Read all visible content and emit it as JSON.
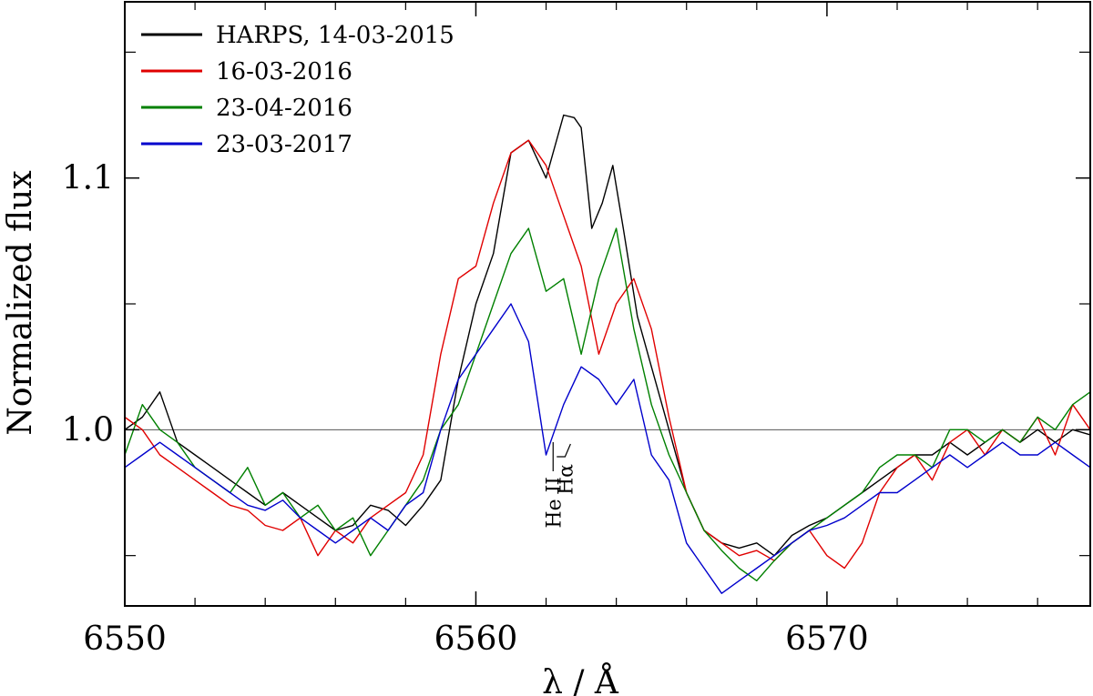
{
  "chart_data": {
    "type": "line",
    "title": "",
    "xlabel": "λ / Å",
    "ylabel": "Normalized flux",
    "xlim": [
      6550,
      6577.5
    ],
    "ylim": [
      0.93,
      1.17
    ],
    "xticks": [
      6550,
      6560,
      6570
    ],
    "xtick_labels": [
      "6550",
      "6560",
      "6570"
    ],
    "xtick_minor": [
      6552,
      6554,
      6556,
      6558,
      6562,
      6564,
      6566,
      6568,
      6572,
      6574,
      6576
    ],
    "yticks": [
      1.0,
      1.1
    ],
    "ytick_labels": [
      "1.0",
      "1.1"
    ],
    "ytick_minor": [
      0.95,
      1.05,
      1.15
    ],
    "reference_line": 1.0,
    "legend_position": "top-left",
    "series": [
      {
        "name": "HARPS, 14-03-2015",
        "color": "#000000",
        "x": [
          6550,
          6550.5,
          6551,
          6551.5,
          6552,
          6552.5,
          6553,
          6553.5,
          6554,
          6554.5,
          6555,
          6555.5,
          6556,
          6556.5,
          6557,
          6557.5,
          6558,
          6558.5,
          6559,
          6559.5,
          6560,
          6560.5,
          6561,
          6561.5,
          6562,
          6562.5,
          6562.8,
          6563,
          6563.3,
          6563.6,
          6563.9,
          6564.2,
          6564.6,
          6565,
          6565.5,
          6566,
          6566.5,
          6567,
          6567.5,
          6568,
          6568.5,
          6569,
          6569.5,
          6570,
          6570.5,
          6571,
          6571.5,
          6572,
          6572.5,
          6573,
          6573.5,
          6574,
          6574.5,
          6575,
          6575.5,
          6576,
          6576.5,
          6577,
          6577.5
        ],
        "y": [
          1.0,
          1.005,
          1.015,
          0.995,
          0.99,
          0.985,
          0.98,
          0.975,
          0.97,
          0.975,
          0.97,
          0.965,
          0.96,
          0.962,
          0.97,
          0.968,
          0.962,
          0.97,
          0.98,
          1.02,
          1.05,
          1.07,
          1.11,
          1.115,
          1.1,
          1.125,
          1.124,
          1.12,
          1.08,
          1.09,
          1.105,
          1.08,
          1.045,
          1.025,
          1.0,
          0.975,
          0.96,
          0.955,
          0.953,
          0.955,
          0.95,
          0.958,
          0.962,
          0.965,
          0.97,
          0.975,
          0.98,
          0.985,
          0.99,
          0.99,
          0.995,
          0.99,
          0.995,
          1.0,
          0.995,
          1.0,
          0.995,
          1.0,
          0.998
        ]
      },
      {
        "name": "16-03-2016",
        "color": "#e00000",
        "x": [
          6550,
          6550.5,
          6551,
          6551.5,
          6552,
          6552.5,
          6553,
          6553.5,
          6554,
          6554.5,
          6555,
          6555.5,
          6556,
          6556.5,
          6557,
          6557.5,
          6558,
          6558.5,
          6559,
          6559.5,
          6560,
          6560.5,
          6561,
          6561.5,
          6562,
          6562.5,
          6563,
          6563.5,
          6564,
          6564.5,
          6565,
          6565.5,
          6566,
          6566.5,
          6567,
          6567.5,
          6568,
          6568.5,
          6569,
          6569.5,
          6570,
          6570.5,
          6571,
          6571.5,
          6572,
          6572.5,
          6573,
          6573.5,
          6574,
          6574.5,
          6575,
          6575.5,
          6576,
          6576.5,
          6577,
          6577.5
        ],
        "y": [
          1.005,
          1.0,
          0.99,
          0.985,
          0.98,
          0.975,
          0.97,
          0.968,
          0.962,
          0.96,
          0.965,
          0.95,
          0.96,
          0.955,
          0.965,
          0.97,
          0.975,
          0.99,
          1.03,
          1.06,
          1.065,
          1.09,
          1.11,
          1.115,
          1.105,
          1.085,
          1.065,
          1.03,
          1.05,
          1.06,
          1.04,
          1.005,
          0.975,
          0.96,
          0.955,
          0.95,
          0.952,
          0.948,
          0.955,
          0.96,
          0.95,
          0.945,
          0.955,
          0.975,
          0.985,
          0.99,
          0.98,
          0.995,
          1.0,
          0.99,
          1.0,
          0.995,
          1.005,
          0.99,
          1.01,
          1.0
        ]
      },
      {
        "name": "23-04-2016",
        "color": "#008000",
        "x": [
          6550,
          6550.5,
          6551,
          6551.5,
          6552,
          6552.5,
          6553,
          6553.5,
          6554,
          6554.5,
          6555,
          6555.5,
          6556,
          6556.5,
          6557,
          6557.5,
          6558,
          6558.5,
          6559,
          6559.5,
          6560,
          6560.5,
          6561,
          6561.5,
          6562,
          6562.5,
          6563,
          6563.5,
          6564,
          6564.5,
          6565,
          6565.5,
          6566,
          6566.5,
          6567,
          6567.5,
          6568,
          6568.5,
          6569,
          6569.5,
          6570,
          6570.5,
          6571,
          6571.5,
          6572,
          6572.5,
          6573,
          6573.5,
          6574,
          6574.5,
          6575,
          6575.5,
          6576,
          6576.5,
          6577,
          6577.5
        ],
        "y": [
          0.99,
          1.01,
          1.0,
          0.995,
          0.985,
          0.98,
          0.975,
          0.985,
          0.97,
          0.975,
          0.965,
          0.97,
          0.96,
          0.965,
          0.95,
          0.96,
          0.97,
          0.98,
          1.0,
          1.01,
          1.03,
          1.05,
          1.07,
          1.08,
          1.055,
          1.06,
          1.03,
          1.06,
          1.08,
          1.04,
          1.01,
          0.99,
          0.975,
          0.96,
          0.952,
          0.945,
          0.94,
          0.948,
          0.955,
          0.96,
          0.965,
          0.97,
          0.975,
          0.985,
          0.99,
          0.99,
          0.985,
          1.0,
          1.0,
          0.995,
          1.0,
          0.995,
          1.005,
          1.0,
          1.01,
          1.015
        ]
      },
      {
        "name": "23-03-2017",
        "color": "#0000cc",
        "x": [
          6550,
          6550.5,
          6551,
          6551.5,
          6552,
          6552.5,
          6553,
          6553.5,
          6554,
          6554.5,
          6555,
          6555.5,
          6556,
          6556.5,
          6557,
          6557.5,
          6558,
          6558.5,
          6559,
          6559.5,
          6560,
          6560.5,
          6561,
          6561.5,
          6562,
          6562.5,
          6563,
          6563.5,
          6564,
          6564.5,
          6565,
          6565.5,
          6566,
          6566.5,
          6567,
          6567.5,
          6568,
          6568.5,
          6569,
          6569.5,
          6570,
          6570.5,
          6571,
          6571.5,
          6572,
          6572.5,
          6573,
          6573.5,
          6574,
          6574.5,
          6575,
          6575.5,
          6576,
          6576.5,
          6577,
          6577.5
        ],
        "y": [
          0.985,
          0.99,
          0.995,
          0.99,
          0.985,
          0.98,
          0.975,
          0.97,
          0.968,
          0.972,
          0.965,
          0.96,
          0.955,
          0.96,
          0.965,
          0.96,
          0.97,
          0.975,
          1.0,
          1.02,
          1.03,
          1.04,
          1.05,
          1.035,
          0.99,
          1.01,
          1.025,
          1.02,
          1.01,
          1.02,
          0.99,
          0.98,
          0.955,
          0.945,
          0.935,
          0.94,
          0.945,
          0.95,
          0.955,
          0.96,
          0.962,
          0.965,
          0.97,
          0.975,
          0.975,
          0.98,
          0.985,
          0.99,
          0.985,
          0.99,
          0.995,
          0.99,
          0.99,
          0.995,
          0.99,
          0.985
        ]
      }
    ],
    "annotations": [
      {
        "text": "He II",
        "x": 6562.2,
        "y": 0.99
      },
      {
        "text": "Hα",
        "x": 6562.8,
        "y": 0.99
      }
    ]
  }
}
